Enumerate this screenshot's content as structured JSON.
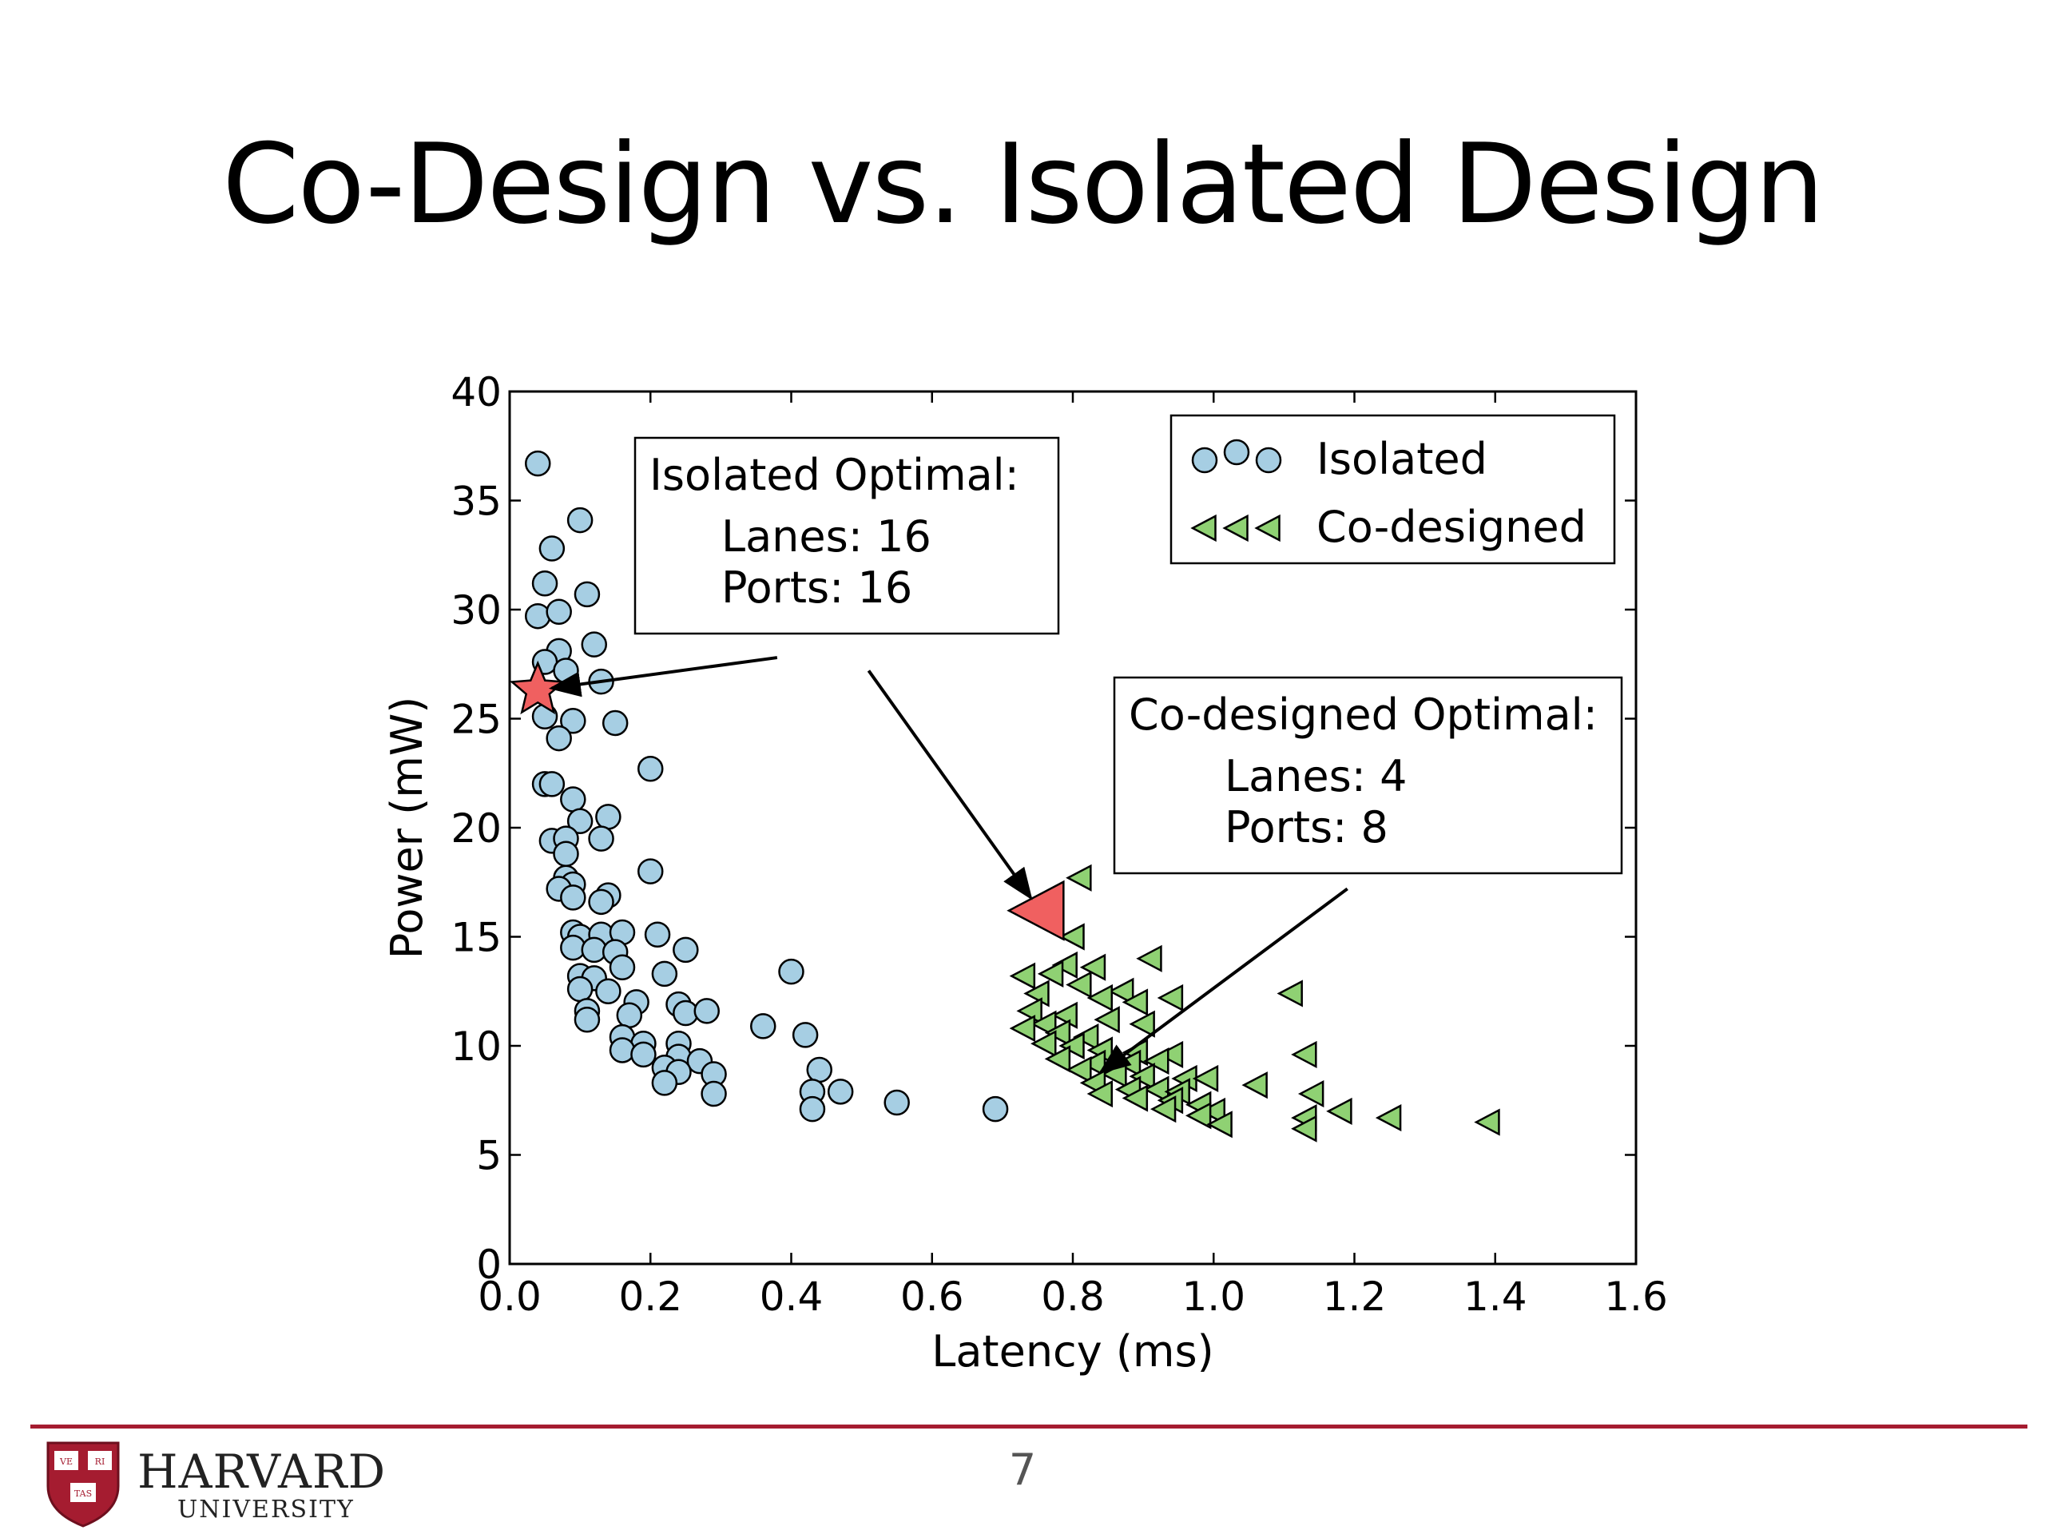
{
  "slide": {
    "title": "Co-Design vs. Isolated Design",
    "page_number": "7",
    "logo": {
      "name": "HARVARD",
      "subtitle": "UNIVERSITY",
      "shield_text": [
        "VE",
        "RI",
        "TAS"
      ]
    },
    "colors": {
      "accent": "#a51c30"
    }
  },
  "chart_data": {
    "type": "scatter",
    "xlabel": "Latency (ms)",
    "ylabel": "Power (mW)",
    "xlim": [
      0,
      1.6
    ],
    "ylim": [
      0,
      40
    ],
    "xticks": [
      "0.0",
      "0.2",
      "0.4",
      "0.6",
      "0.8",
      "1.0",
      "1.2",
      "1.4",
      "1.6"
    ],
    "yticks": [
      "0",
      "5",
      "10",
      "15",
      "20",
      "25",
      "30",
      "35",
      "40"
    ],
    "legend": {
      "placement": "top-right"
    },
    "series": [
      {
        "name": "Isolated",
        "marker": "circle",
        "color": "#a6cee3",
        "points": [
          [
            0.04,
            36.7
          ],
          [
            0.1,
            34.1
          ],
          [
            0.06,
            32.8
          ],
          [
            0.05,
            31.2
          ],
          [
            0.11,
            30.7
          ],
          [
            0.04,
            29.7
          ],
          [
            0.07,
            29.9
          ],
          [
            0.12,
            28.4
          ],
          [
            0.07,
            28.1
          ],
          [
            0.05,
            27.6
          ],
          [
            0.08,
            27.2
          ],
          [
            0.13,
            26.7
          ],
          [
            0.05,
            25.1
          ],
          [
            0.09,
            24.9
          ],
          [
            0.15,
            24.8
          ],
          [
            0.07,
            24.1
          ],
          [
            0.2,
            22.7
          ],
          [
            0.05,
            22.0
          ],
          [
            0.06,
            22.0
          ],
          [
            0.09,
            21.3
          ],
          [
            0.1,
            20.3
          ],
          [
            0.14,
            20.5
          ],
          [
            0.06,
            19.4
          ],
          [
            0.08,
            19.5
          ],
          [
            0.13,
            19.5
          ],
          [
            0.08,
            18.8
          ],
          [
            0.2,
            18.0
          ],
          [
            0.08,
            17.7
          ],
          [
            0.09,
            17.4
          ],
          [
            0.07,
            17.2
          ],
          [
            0.14,
            16.9
          ],
          [
            0.13,
            16.6
          ],
          [
            0.09,
            16.8
          ],
          [
            0.09,
            15.2
          ],
          [
            0.1,
            15.0
          ],
          [
            0.13,
            15.1
          ],
          [
            0.16,
            15.2
          ],
          [
            0.21,
            15.1
          ],
          [
            0.09,
            14.5
          ],
          [
            0.12,
            14.4
          ],
          [
            0.15,
            14.3
          ],
          [
            0.25,
            14.4
          ],
          [
            0.16,
            13.6
          ],
          [
            0.1,
            13.2
          ],
          [
            0.12,
            13.1
          ],
          [
            0.22,
            13.3
          ],
          [
            0.4,
            13.4
          ],
          [
            0.1,
            12.6
          ],
          [
            0.14,
            12.5
          ],
          [
            0.18,
            12.0
          ],
          [
            0.24,
            11.9
          ],
          [
            0.11,
            11.6
          ],
          [
            0.17,
            11.4
          ],
          [
            0.25,
            11.5
          ],
          [
            0.28,
            11.6
          ],
          [
            0.11,
            11.2
          ],
          [
            0.36,
            10.9
          ],
          [
            0.42,
            10.5
          ],
          [
            0.16,
            10.4
          ],
          [
            0.19,
            10.1
          ],
          [
            0.24,
            10.1
          ],
          [
            0.16,
            9.8
          ],
          [
            0.19,
            9.6
          ],
          [
            0.24,
            9.5
          ],
          [
            0.27,
            9.3
          ],
          [
            0.22,
            9.0
          ],
          [
            0.24,
            8.8
          ],
          [
            0.29,
            8.7
          ],
          [
            0.44,
            8.9
          ],
          [
            0.22,
            8.3
          ],
          [
            0.29,
            7.8
          ],
          [
            0.43,
            7.9
          ],
          [
            0.47,
            7.9
          ],
          [
            0.55,
            7.4
          ],
          [
            0.43,
            7.1
          ],
          [
            0.69,
            7.1
          ]
        ]
      },
      {
        "name": "Co-designed",
        "marker": "triangle-left",
        "color": "#8fd173",
        "points": [
          [
            0.81,
            17.7
          ],
          [
            0.8,
            15.0
          ],
          [
            0.91,
            14.0
          ],
          [
            0.79,
            13.7
          ],
          [
            0.83,
            13.6
          ],
          [
            0.73,
            13.2
          ],
          [
            0.77,
            13.3
          ],
          [
            0.81,
            12.8
          ],
          [
            0.87,
            12.5
          ],
          [
            0.75,
            12.4
          ],
          [
            0.84,
            12.2
          ],
          [
            0.94,
            12.2
          ],
          [
            0.89,
            12.0
          ],
          [
            1.11,
            12.4
          ],
          [
            0.74,
            11.6
          ],
          [
            0.79,
            11.4
          ],
          [
            0.76,
            11.0
          ],
          [
            0.85,
            11.2
          ],
          [
            0.9,
            11.0
          ],
          [
            0.73,
            10.8
          ],
          [
            0.78,
            10.6
          ],
          [
            0.82,
            10.4
          ],
          [
            0.76,
            10.1
          ],
          [
            0.8,
            10.0
          ],
          [
            0.84,
            9.8
          ],
          [
            0.89,
            9.7
          ],
          [
            0.94,
            9.6
          ],
          [
            1.13,
            9.6
          ],
          [
            0.78,
            9.4
          ],
          [
            0.83,
            9.2
          ],
          [
            0.88,
            9.2
          ],
          [
            0.92,
            9.3
          ],
          [
            0.81,
            8.9
          ],
          [
            0.86,
            8.7
          ],
          [
            0.9,
            8.6
          ],
          [
            0.96,
            8.5
          ],
          [
            0.99,
            8.5
          ],
          [
            1.06,
            8.2
          ],
          [
            0.83,
            8.3
          ],
          [
            0.88,
            8.0
          ],
          [
            0.92,
            8.0
          ],
          [
            0.95,
            7.9
          ],
          [
            1.14,
            7.8
          ],
          [
            0.84,
            7.8
          ],
          [
            0.89,
            7.6
          ],
          [
            0.94,
            7.5
          ],
          [
            0.98,
            7.3
          ],
          [
            0.93,
            7.1
          ],
          [
            1.0,
            7.0
          ],
          [
            1.18,
            7.0
          ],
          [
            0.98,
            6.8
          ],
          [
            1.13,
            6.7
          ],
          [
            1.25,
            6.7
          ],
          [
            1.39,
            6.5
          ],
          [
            1.01,
            6.4
          ],
          [
            1.13,
            6.2
          ]
        ]
      }
    ],
    "highlights": [
      {
        "name": "Isolated Optimal",
        "marker": "star",
        "color": "#f06060",
        "x": 0.04,
        "y": 26.3
      },
      {
        "name": "Co-designed Optimal",
        "marker": "triangle-left",
        "color": "#f06060",
        "x": 0.75,
        "y": 16.2
      }
    ],
    "annotations": [
      {
        "title": "Isolated Optimal:",
        "lines": [
          "Lanes: 16",
          "Ports: 16"
        ],
        "arrows": [
          {
            "from": [
              0.38,
              27.8
            ],
            "to": [
              0.06,
              26.4
            ]
          },
          {
            "from": [
              0.51,
              27.2
            ],
            "to": [
              0.74,
              16.8
            ]
          }
        ]
      },
      {
        "title": "Co-designed Optimal:",
        "lines": [
          "Lanes: 4",
          "Ports: 8"
        ],
        "arrows": [
          {
            "from": [
              1.19,
              17.2
            ],
            "to": [
              0.84,
              8.8
            ]
          }
        ]
      }
    ]
  }
}
